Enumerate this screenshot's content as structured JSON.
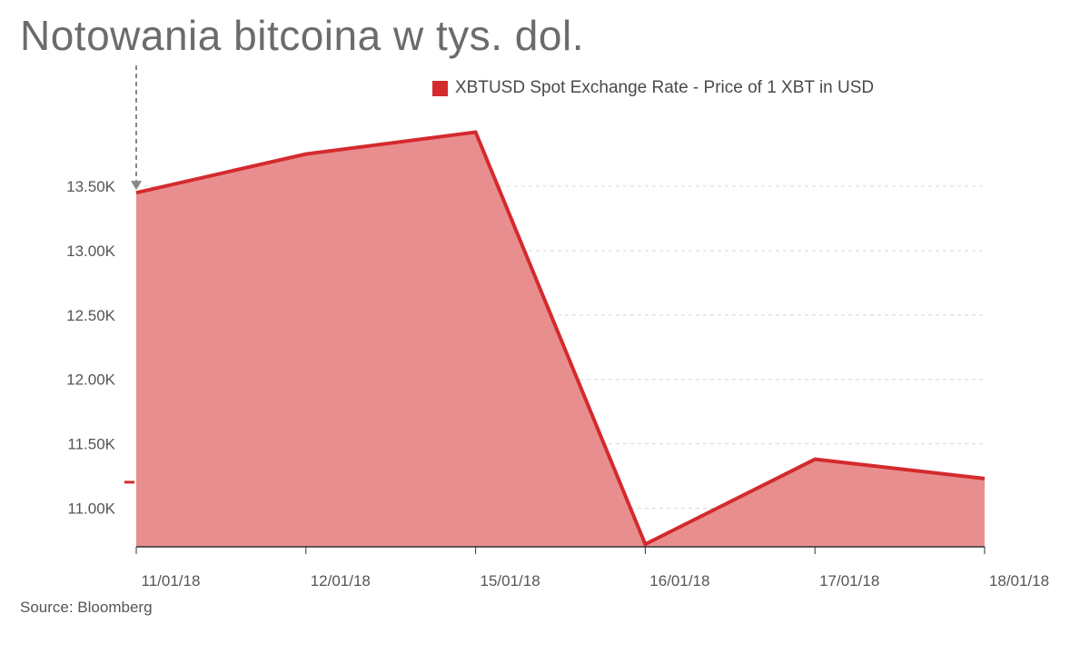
{
  "title": "Notowania bitcoina w tys. dol.",
  "source": "Source: Bloomberg",
  "colors": {
    "line": "#d42a2e",
    "fill": "#e98e8f",
    "grid": "#d8d8d8",
    "axis": "#333333",
    "marker": "#888888"
  },
  "chart_data": {
    "type": "area",
    "title": "Notowania bitcoina w tys. dol.",
    "categories": [
      "11/01/18",
      "12/01/18",
      "15/01/18",
      "16/01/18",
      "17/01/18",
      "18/01/18"
    ],
    "series": [
      {
        "name": "XBTUSD Spot Exchange Rate - Price of 1 XBT in USD",
        "values": [
          13450,
          13750,
          13920,
          10720,
          11380,
          11230
        ]
      }
    ],
    "yticks": [
      11000,
      11500,
      12000,
      12500,
      13000,
      13500
    ],
    "ytick_labels": [
      "11.00K",
      "11.50K",
      "12.00K",
      "12.50K",
      "13.00K",
      "13.50K"
    ],
    "ylim": [
      10700,
      14100
    ],
    "grid": true,
    "legend_position": "top"
  }
}
